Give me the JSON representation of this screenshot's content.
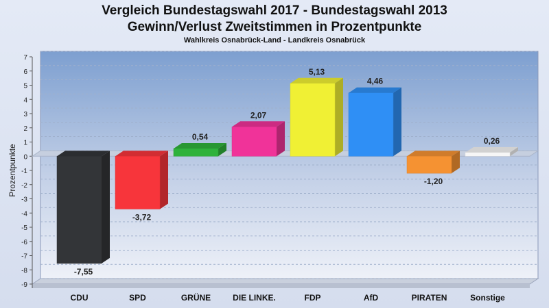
{
  "title": "Vergleich Bundestagswahl 2017 - Bundestagswahl 2013",
  "subtitle_line": "Gewinn/Verlust Zweitstimmen in Prozentpunkte",
  "region": "Wahlkreis Osnabrück-Land - Landkreis Osnabrück",
  "chart_data": {
    "type": "bar",
    "title": "Vergleich Bundestagswahl 2017 - Bundestagswahl 2013",
    "subtitle": "Gewinn/Verlust Zweitstimmen in Prozentpunkte",
    "xlabel": "",
    "ylabel": "Prozentpunkte",
    "ylim": [
      -9,
      7
    ],
    "yticks": [
      7,
      6,
      5,
      4,
      3,
      2,
      1,
      0,
      -1,
      -2,
      -3,
      -4,
      -5,
      -6,
      -7,
      -8,
      -9
    ],
    "grid": true,
    "categories": [
      "CDU",
      "SPD",
      "GRÜNE",
      "DIE LINKE.",
      "FDP",
      "AfD",
      "PIRATEN",
      "Sonstige"
    ],
    "values": [
      -7.55,
      -3.72,
      0.54,
      2.07,
      5.13,
      4.46,
      -1.2,
      0.26
    ],
    "value_labels": [
      "-7,55",
      "-3,72",
      "0,54",
      "2,07",
      "5,13",
      "4,46",
      "-1,20",
      "0,26"
    ],
    "colors": [
      "#333538",
      "#f7353b",
      "#2fb23b",
      "#f03399",
      "#f0f034",
      "#2f8ff5",
      "#f59232",
      "#f6f6f6"
    ]
  }
}
